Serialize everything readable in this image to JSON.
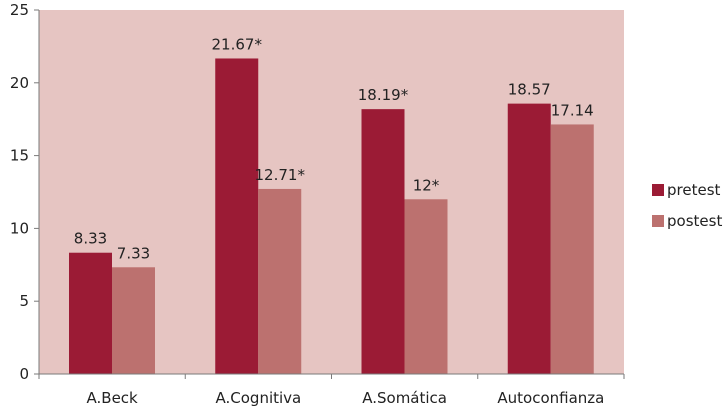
{
  "chart_data": {
    "type": "bar",
    "title": "",
    "xlabel": "",
    "ylabel": "",
    "categories": [
      "A.Beck",
      "A.Cognitiva",
      "A.Somática",
      "Autoconfianza"
    ],
    "series": [
      {
        "name": "pretest",
        "values": [
          8.33,
          21.67,
          18.19,
          18.57
        ],
        "labels": [
          "8.33",
          "21.67*",
          "18.19*",
          "18.57"
        ],
        "color": "#9b1b35"
      },
      {
        "name": "postest",
        "values": [
          7.33,
          12.71,
          12,
          17.14
        ],
        "labels": [
          "7.33",
          "12.71*",
          "12*",
          "17.14"
        ],
        "color": "#bc716f"
      }
    ],
    "ylim": [
      0,
      25
    ],
    "yticks": [
      "0",
      "5",
      "10",
      "15",
      "20",
      "25"
    ],
    "grid": false,
    "legend_position": "right",
    "plot_background": "#e6c5c2"
  }
}
